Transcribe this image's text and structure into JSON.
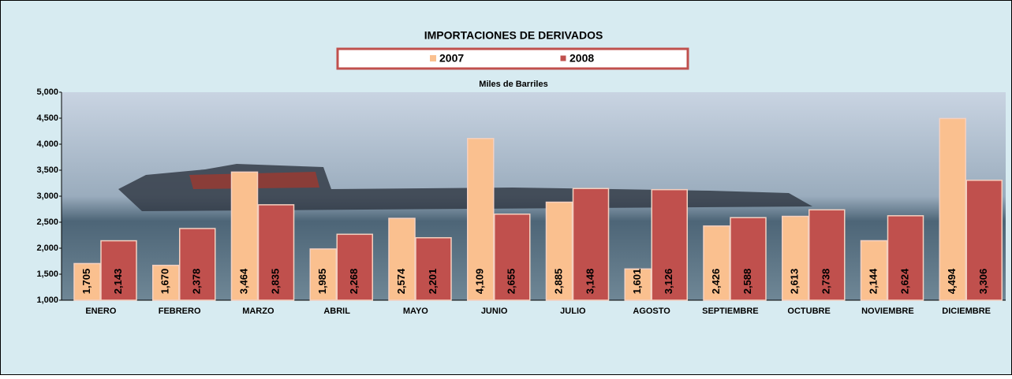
{
  "chart_data": {
    "type": "bar",
    "title": "IMPORTACIONES DE DERIVADOS",
    "subtitle": "Miles de Barriles",
    "categories": [
      "ENERO",
      "FEBRERO",
      "MARZO",
      "ABRIL",
      "MAYO",
      "JUNIO",
      "JULIO",
      "AGOSTO",
      "SEPTIEMBRE",
      "OCTUBRE",
      "NOVIEMBRE",
      "DICIEMBRE"
    ],
    "series": [
      {
        "name": "2007",
        "color": "#fac08f",
        "values": [
          1705,
          1670,
          3464,
          1985,
          2574,
          4109,
          2885,
          1601,
          2426,
          2613,
          2144,
          4494
        ],
        "value_labels": [
          "1,705",
          "1,670",
          "3,464",
          "1,985",
          "2,574",
          "4,109",
          "2,885",
          "1,601",
          "2,426",
          "2,613",
          "2,144",
          "4,494"
        ]
      },
      {
        "name": "2008",
        "color": "#c0504d",
        "values": [
          2143,
          2378,
          2835,
          2268,
          2201,
          2655,
          3148,
          3126,
          2588,
          2738,
          2624,
          3306
        ],
        "value_labels": [
          "2,143",
          "2,378",
          "2,835",
          "2,268",
          "2,201",
          "2,655",
          "3,148",
          "3,126",
          "2,588",
          "2,738",
          "2,624",
          "3,306"
        ]
      }
    ],
    "ylim": [
      1000,
      5000
    ],
    "yticks": [
      {
        "value": 1000,
        "label": "1,000"
      },
      {
        "value": 1500,
        "label": "1,500"
      },
      {
        "value": 2000,
        "label": "2,000"
      },
      {
        "value": 2500,
        "label": "2,500"
      },
      {
        "value": 3000,
        "label": "3,000"
      },
      {
        "value": 3500,
        "label": "3,500"
      },
      {
        "value": 4000,
        "label": "4,000"
      },
      {
        "value": 4500,
        "label": "4,500"
      },
      {
        "value": 5000,
        "label": "5,000"
      }
    ],
    "legend": "top"
  }
}
